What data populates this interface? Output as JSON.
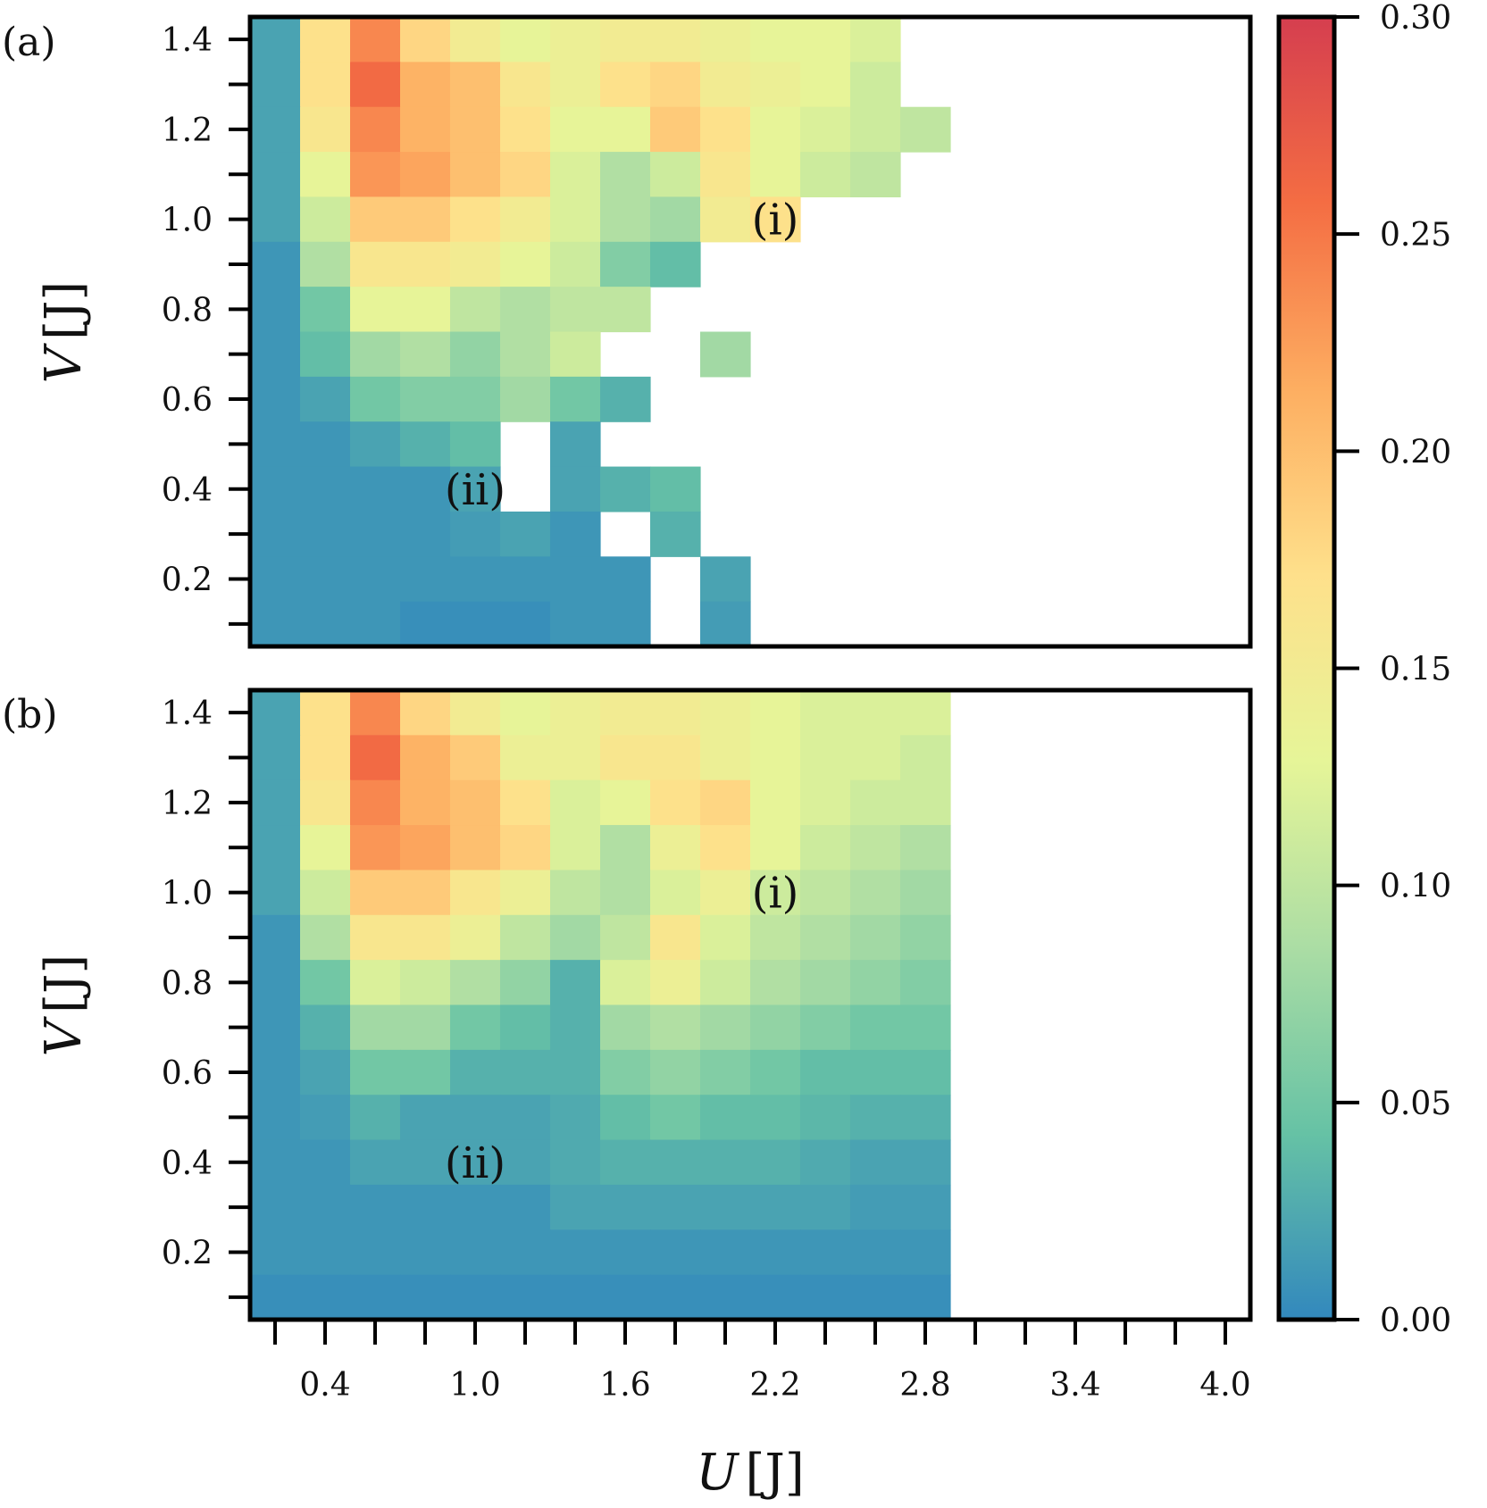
{
  "chart_data": {
    "type": "heatmap",
    "x": [
      0.2,
      0.4,
      0.6,
      0.8,
      1.0,
      1.2,
      1.4,
      1.6,
      1.8,
      2.0,
      2.2,
      2.4,
      2.6,
      2.8,
      3.0,
      3.2,
      3.4,
      3.6,
      3.8,
      4.0
    ],
    "y": [
      0.1,
      0.2,
      0.3,
      0.4,
      0.5,
      0.6,
      0.7,
      0.8,
      0.9,
      1.0,
      1.1,
      1.2,
      1.3,
      1.4
    ],
    "xlabel": "U [J]",
    "ylabel": "V [J]",
    "xlabel_main": "U",
    "ylabel_main": "V",
    "unit_label": "[J]",
    "xticks": [
      "0.4",
      "1.0",
      "1.6",
      "2.2",
      "2.8",
      "3.4",
      "4.0"
    ],
    "yticks": [
      "0.2",
      "0.4",
      "0.6",
      "0.8",
      "1.0",
      "1.2",
      "1.4"
    ],
    "colorbar": {
      "range": [
        0.0,
        0.3
      ],
      "ticks": [
        "0.00",
        "0.05",
        "0.10",
        "0.15",
        "0.20",
        "0.25",
        "0.30"
      ],
      "colormap": [
        "#3288bd",
        "#66c2a5",
        "#abdda4",
        "#e6f598",
        "#fee08b",
        "#fdae61",
        "#f46d43",
        "#d53e4f"
      ]
    },
    "panels": [
      {
        "label": "(a)",
        "annotations": [
          {
            "text": "(i)",
            "U": 2.2,
            "V": 1.0
          },
          {
            "text": "(ii)",
            "U": 1.0,
            "V": 0.4
          }
        ],
        "rows_top_to_bottom": [
          [
            0.02,
            0.17,
            0.24,
            0.18,
            0.15,
            0.13,
            0.14,
            0.15,
            0.15,
            0.14,
            0.13,
            0.13,
            0.12
          ],
          [
            0.02,
            0.17,
            0.26,
            0.21,
            0.2,
            0.16,
            0.14,
            0.17,
            0.18,
            0.15,
            0.14,
            0.13,
            0.11
          ],
          [
            0.02,
            0.16,
            0.24,
            0.21,
            0.2,
            0.17,
            0.13,
            0.13,
            0.19,
            0.17,
            0.13,
            0.12,
            0.11,
            0.1
          ],
          [
            0.02,
            0.13,
            0.23,
            0.22,
            0.2,
            0.18,
            0.12,
            0.09,
            0.11,
            0.16,
            0.13,
            0.11,
            0.1,
            null
          ],
          [
            0.02,
            0.11,
            0.19,
            0.19,
            0.17,
            0.15,
            0.12,
            0.09,
            0.08,
            0.15,
            0.17,
            null,
            null,
            null
          ],
          [
            0.01,
            0.09,
            0.16,
            0.16,
            0.15,
            0.13,
            0.11,
            0.06,
            0.04,
            null,
            null,
            null,
            null,
            null
          ],
          [
            0.01,
            0.05,
            0.13,
            0.13,
            0.1,
            0.09,
            0.1,
            0.1,
            null,
            null,
            null,
            null,
            null,
            null
          ],
          [
            0.01,
            0.04,
            0.08,
            0.09,
            0.07,
            0.09,
            0.11,
            null,
            null,
            0.08,
            null,
            null,
            null,
            null
          ],
          [
            0.01,
            0.02,
            0.05,
            0.06,
            0.06,
            0.08,
            0.05,
            0.03,
            null,
            null,
            null,
            null,
            null,
            null
          ],
          [
            0.01,
            0.01,
            0.02,
            0.03,
            0.04,
            null,
            0.02,
            null,
            null,
            null,
            null,
            null,
            null,
            null
          ],
          [
            0.01,
            0.01,
            0.01,
            0.01,
            0.02,
            null,
            0.02,
            0.03,
            0.04,
            null,
            null,
            null,
            null,
            null
          ],
          [
            0.01,
            0.01,
            0.01,
            0.01,
            0.015,
            0.02,
            0.01,
            null,
            0.03,
            null,
            null,
            null,
            null,
            null
          ],
          [
            0.01,
            0.01,
            0.01,
            0.01,
            0.01,
            0.01,
            0.01,
            0.01,
            null,
            0.02,
            null,
            null,
            null,
            null
          ],
          [
            0.01,
            0.01,
            0.01,
            0.005,
            0.005,
            0.005,
            0.01,
            0.01,
            null,
            0.015,
            null,
            null,
            null,
            null
          ]
        ]
      },
      {
        "label": "(b)",
        "annotations": [
          {
            "text": "(i)",
            "U": 2.2,
            "V": 1.0
          },
          {
            "text": "(ii)",
            "U": 1.0,
            "V": 0.4
          }
        ],
        "rows_top_to_bottom": [
          [
            0.02,
            0.17,
            0.24,
            0.18,
            0.15,
            0.13,
            0.14,
            0.15,
            0.15,
            0.14,
            0.13,
            0.12,
            0.12,
            0.12
          ],
          [
            0.02,
            0.17,
            0.26,
            0.21,
            0.19,
            0.14,
            0.14,
            0.16,
            0.16,
            0.14,
            0.13,
            0.12,
            0.12,
            0.11
          ],
          [
            0.02,
            0.16,
            0.24,
            0.21,
            0.2,
            0.17,
            0.12,
            0.13,
            0.17,
            0.18,
            0.13,
            0.12,
            0.11,
            0.11
          ],
          [
            0.02,
            0.13,
            0.23,
            0.22,
            0.2,
            0.18,
            0.12,
            0.09,
            0.14,
            0.17,
            0.13,
            0.11,
            0.1,
            0.09
          ],
          [
            0.02,
            0.11,
            0.19,
            0.19,
            0.16,
            0.14,
            0.1,
            0.09,
            0.12,
            0.14,
            0.11,
            0.1,
            0.09,
            0.08
          ],
          [
            0.01,
            0.09,
            0.16,
            0.16,
            0.14,
            0.1,
            0.08,
            0.1,
            0.16,
            0.12,
            0.1,
            0.09,
            0.08,
            0.07
          ],
          [
            0.01,
            0.05,
            0.12,
            0.11,
            0.09,
            0.07,
            0.03,
            0.12,
            0.14,
            0.11,
            0.09,
            0.08,
            0.07,
            0.06
          ],
          [
            0.01,
            0.03,
            0.08,
            0.08,
            0.05,
            0.04,
            0.03,
            0.08,
            0.09,
            0.08,
            0.07,
            0.06,
            0.05,
            0.05
          ],
          [
            0.01,
            0.02,
            0.05,
            0.05,
            0.03,
            0.03,
            0.03,
            0.06,
            0.07,
            0.06,
            0.05,
            0.04,
            0.04,
            0.04
          ],
          [
            0.01,
            0.015,
            0.03,
            0.02,
            0.02,
            0.02,
            0.025,
            0.04,
            0.05,
            0.04,
            0.04,
            0.035,
            0.03,
            0.03
          ],
          [
            0.01,
            0.01,
            0.02,
            0.02,
            0.02,
            0.02,
            0.025,
            0.03,
            0.03,
            0.03,
            0.03,
            0.025,
            0.02,
            0.02
          ],
          [
            0.01,
            0.01,
            0.01,
            0.01,
            0.01,
            0.01,
            0.02,
            0.02,
            0.02,
            0.02,
            0.02,
            0.02,
            0.015,
            0.015
          ],
          [
            0.01,
            0.01,
            0.01,
            0.01,
            0.01,
            0.01,
            0.01,
            0.01,
            0.01,
            0.01,
            0.01,
            0.01,
            0.01,
            0.01
          ],
          [
            0.005,
            0.005,
            0.005,
            0.005,
            0.005,
            0.005,
            0.005,
            0.005,
            0.005,
            0.005,
            0.005,
            0.005,
            0.005,
            0.005
          ]
        ]
      }
    ]
  }
}
